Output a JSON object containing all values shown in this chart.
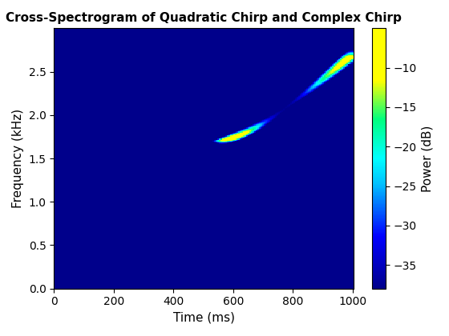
{
  "title": "Cross-Spectrogram of Quadratic Chirp and Complex Chirp",
  "xlabel": "Time (ms)",
  "ylabel": "Frequency (kHz)",
  "colorbar_label": "Power (dB)",
  "clim": [
    -38,
    -5
  ],
  "colorbar_ticks": [
    -10,
    -15,
    -20,
    -25,
    -30,
    -35
  ],
  "fs": 6000,
  "duration": 1.0,
  "nfft": 256,
  "noverlap": 240,
  "background_color": "#0000CC",
  "title_fontsize": 11,
  "label_fontsize": 11
}
